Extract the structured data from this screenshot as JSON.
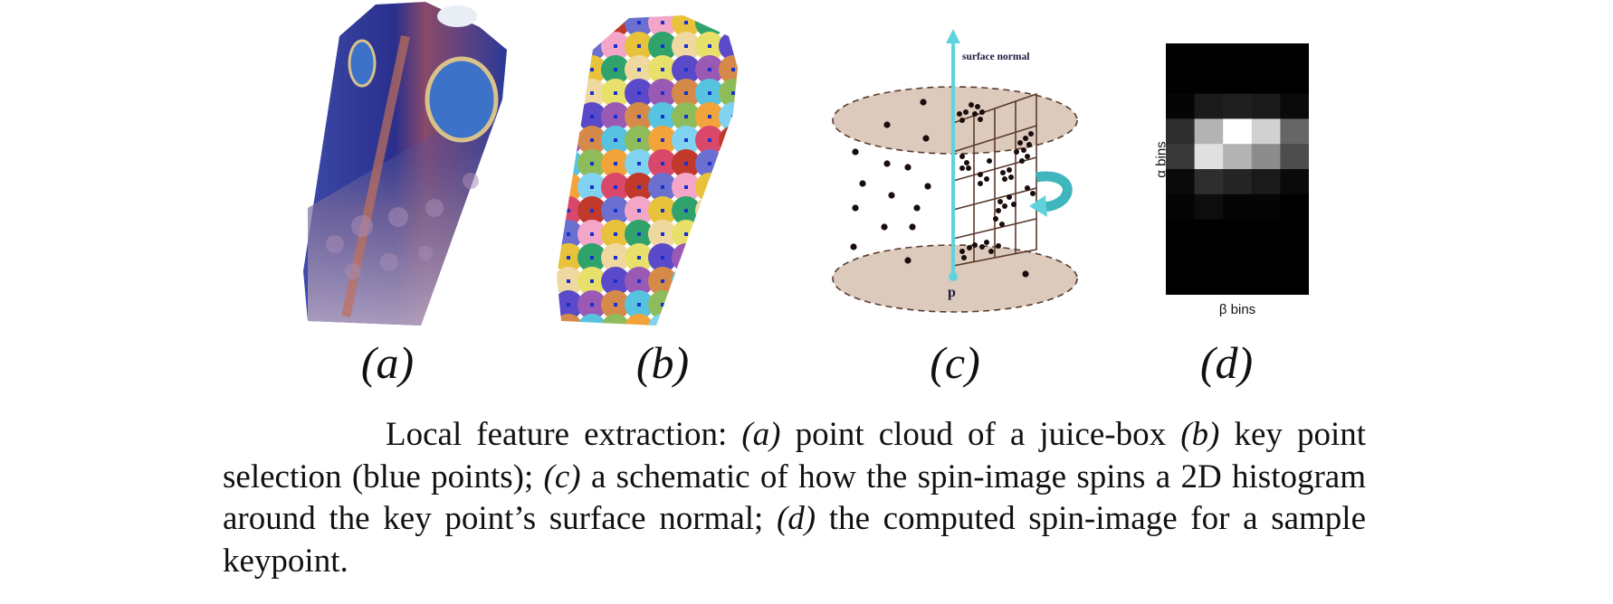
{
  "figure": {
    "panels": [
      {
        "id": "a",
        "label": "(a)",
        "content": "point cloud of a juice-box"
      },
      {
        "id": "b",
        "label": "(b)",
        "content": "key point selection (blue points)"
      },
      {
        "id": "c",
        "label": "(c)",
        "normal_label": "surface normal",
        "point_label": "p"
      },
      {
        "id": "d",
        "label": "(d)",
        "y_axis_label": "α bins",
        "x_axis_label": "β bins",
        "histogram_rows": 10,
        "histogram_cols": 5,
        "histogram_intensity": [
          [
            0.0,
            0.0,
            0.0,
            0.0,
            0.0
          ],
          [
            0.0,
            0.0,
            0.0,
            0.0,
            0.0
          ],
          [
            0.02,
            0.1,
            0.12,
            0.1,
            0.04
          ],
          [
            0.18,
            0.7,
            1.0,
            0.82,
            0.4
          ],
          [
            0.22,
            0.88,
            0.7,
            0.55,
            0.3
          ],
          [
            0.04,
            0.18,
            0.14,
            0.1,
            0.04
          ],
          [
            0.02,
            0.05,
            0.02,
            0.02,
            0.0
          ],
          [
            0.0,
            0.0,
            0.0,
            0.0,
            0.0
          ],
          [
            0.0,
            0.0,
            0.0,
            0.0,
            0.0
          ],
          [
            0.0,
            0.0,
            0.0,
            0.0,
            0.0
          ]
        ]
      }
    ]
  },
  "caption": {
    "line1_prefix": "Local feature extraction: ",
    "a": "(a)",
    "a_text": " point cloud of a juice-box ",
    "b": "(b)",
    "b_text": " key point selection (blue points); ",
    "c": "(c)",
    "c_text": " a schematic of how the spin-image spins a 2D histogram around the key point’s surface normal; ",
    "d": "(d)",
    "d_text": " the computed spin-image for a sample keypoint."
  },
  "colors": {
    "box_blue": "#2a3a9e",
    "normal_cyan": "#5fd3dc",
    "disk_fill": "#dccbbd",
    "grid_brown": "#5a3a2e"
  }
}
